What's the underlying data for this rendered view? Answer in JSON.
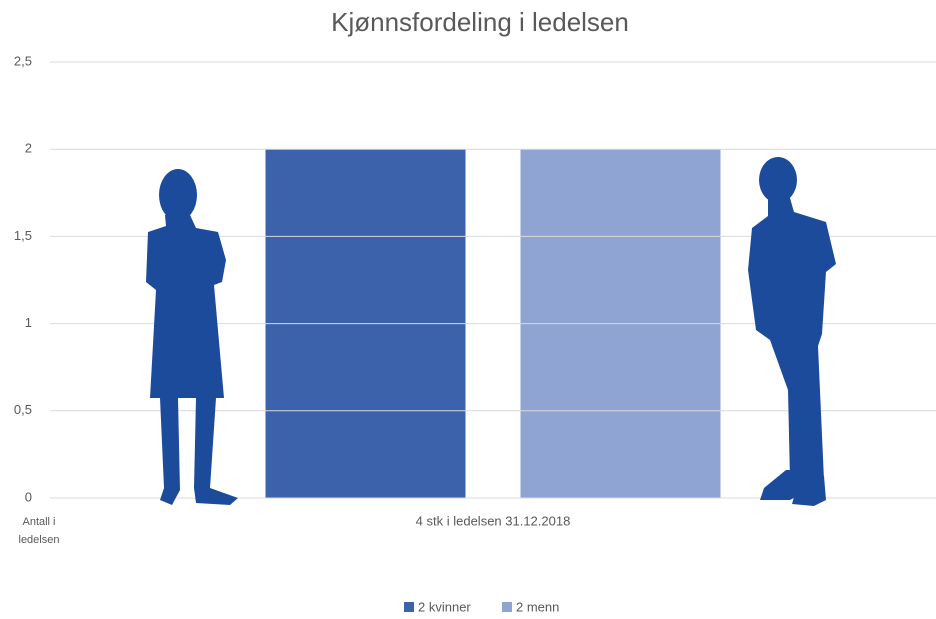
{
  "chart_data": {
    "type": "bar",
    "title": "Kjønnsfordeling i ledelsen",
    "y_label": "Antall i ledelsen",
    "categories": [
      "4 stk i ledelsen 31.12.2018"
    ],
    "series": [
      {
        "name": "2 kvinner",
        "color": "#3c62ab",
        "values": [
          2
        ]
      },
      {
        "name": "2 menn",
        "color": "#8fa4d3",
        "values": [
          2
        ]
      }
    ],
    "ylim": [
      0,
      2.5
    ],
    "yticks": [
      0,
      {
        "value": 0.5,
        "label": "0,5"
      },
      1,
      {
        "value": 1.5,
        "label": "1,5"
      },
      2,
      {
        "value": 2.5,
        "label": "2,5"
      }
    ],
    "grid": true,
    "legend": "bottom"
  }
}
